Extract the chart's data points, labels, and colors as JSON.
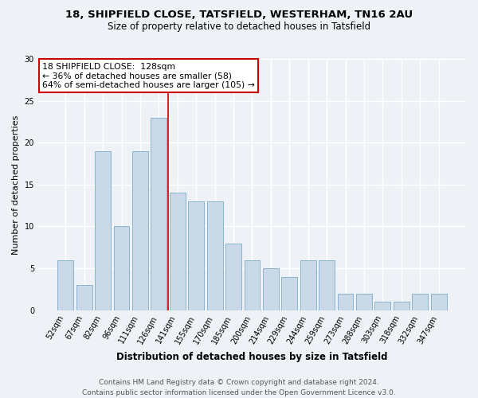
{
  "title1": "18, SHIPFIELD CLOSE, TATSFIELD, WESTERHAM, TN16 2AU",
  "title2": "Size of property relative to detached houses in Tatsfield",
  "xlabel": "Distribution of detached houses by size in Tatsfield",
  "ylabel": "Number of detached properties",
  "categories": [
    "52sqm",
    "67sqm",
    "82sqm",
    "96sqm",
    "111sqm",
    "126sqm",
    "141sqm",
    "155sqm",
    "170sqm",
    "185sqm",
    "200sqm",
    "214sqm",
    "229sqm",
    "244sqm",
    "259sqm",
    "273sqm",
    "288sqm",
    "303sqm",
    "318sqm",
    "332sqm",
    "347sqm"
  ],
  "values": [
    6,
    3,
    19,
    10,
    19,
    23,
    14,
    13,
    13,
    8,
    6,
    5,
    4,
    6,
    6,
    2,
    2,
    1,
    1,
    2,
    2
  ],
  "bar_color": "#c9d9e8",
  "bar_edge_color": "#8ab4cc",
  "vline_x": 5.5,
  "annotation_line1": "18 SHIPFIELD CLOSE:  128sqm",
  "annotation_line2": "← 36% of detached houses are smaller (58)",
  "annotation_line3": "64% of semi-detached houses are larger (105) →",
  "annotation_box_color": "#ffffff",
  "annotation_box_edge_color": "#cc0000",
  "vline_color": "#cc0000",
  "ylim": [
    0,
    30
  ],
  "yticks": [
    0,
    5,
    10,
    15,
    20,
    25,
    30
  ],
  "footer1": "Contains HM Land Registry data © Crown copyright and database right 2024.",
  "footer2": "Contains public sector information licensed under the Open Government Licence v3.0.",
  "bg_color": "#eef2f7",
  "grid_color": "#ffffff",
  "title1_fontsize": 9.5,
  "title2_fontsize": 8.5,
  "xlabel_fontsize": 8.5,
  "ylabel_fontsize": 8,
  "annotation_fontsize": 7.8,
  "footer_fontsize": 6.5,
  "tick_fontsize": 7
}
